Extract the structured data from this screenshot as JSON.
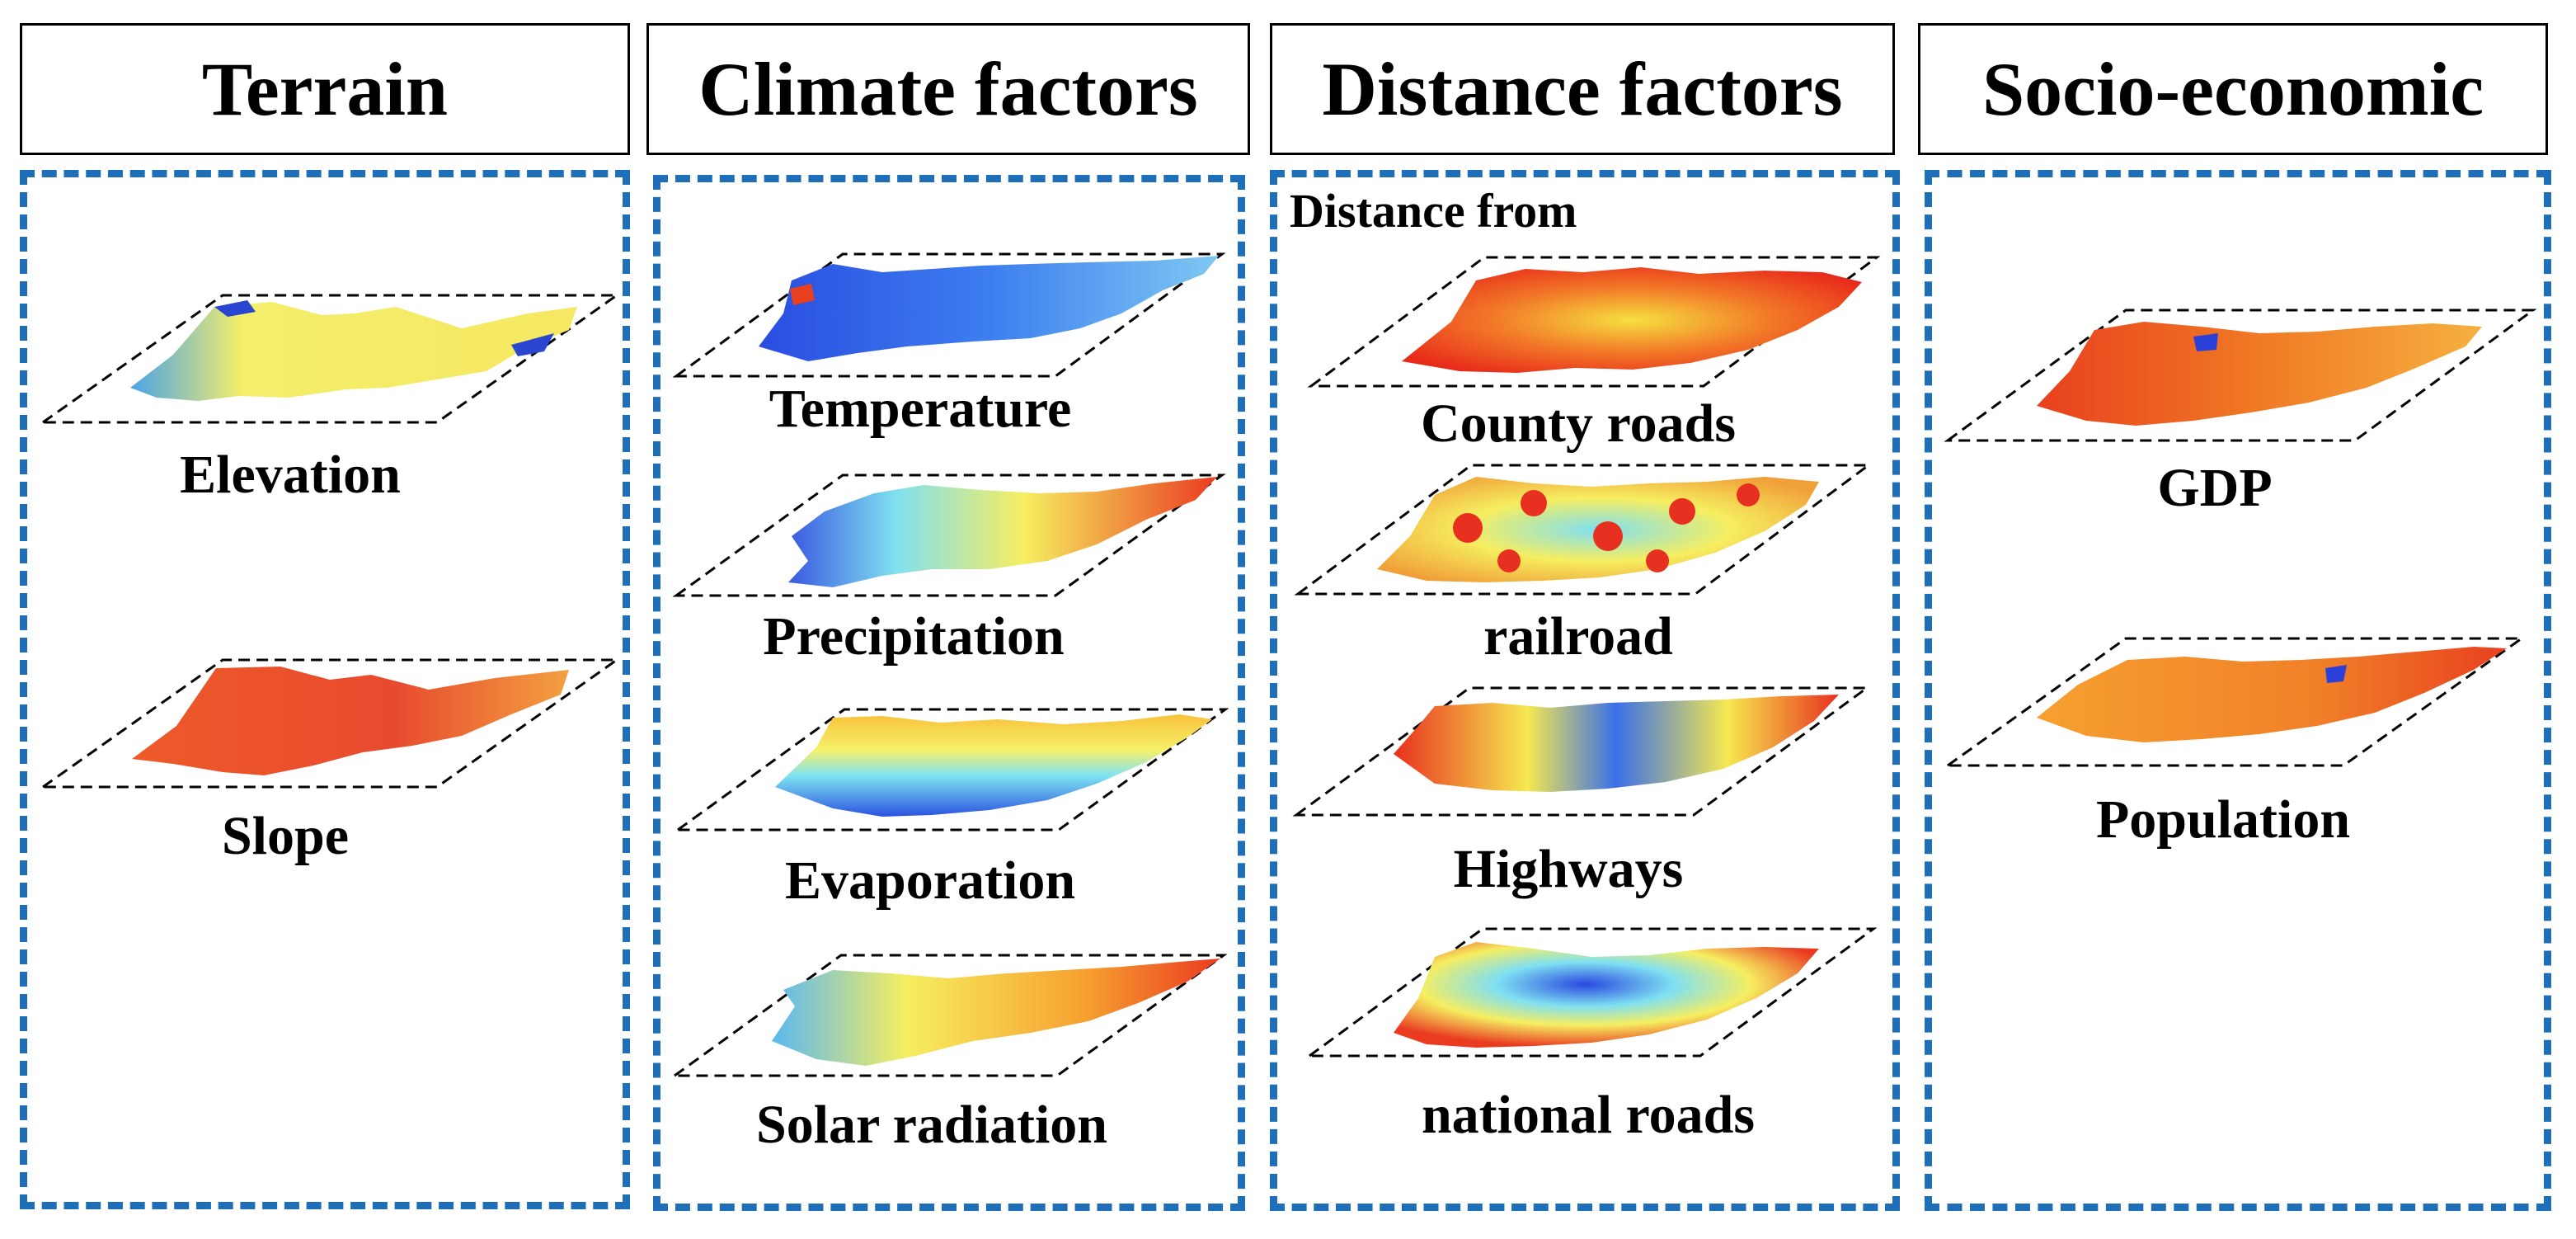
{
  "columns": [
    {
      "header": "Terrain",
      "layers": [
        "Elevation",
        "Slope"
      ]
    },
    {
      "header": "Climate factors",
      "layers": [
        "Temperature",
        "Precipitation",
        "Evaporation",
        "Solar radiation"
      ]
    },
    {
      "header": "Distance factors",
      "subheader": "Distance from",
      "layers": [
        "County roads",
        "railroad",
        "Highways",
        "national roads"
      ]
    },
    {
      "header": "Socio-economic",
      "layers": [
        "GDP",
        "Population"
      ]
    }
  ],
  "colors": {
    "panel_border": "#1f6fb8",
    "header_border": "#000000",
    "plane_border": "#000000"
  }
}
